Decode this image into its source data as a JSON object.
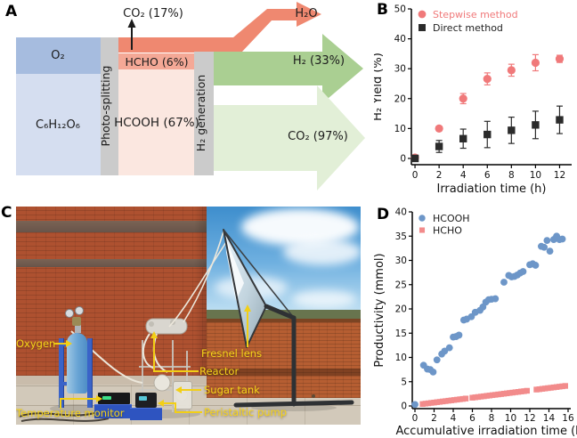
{
  "panels": {
    "a": {
      "letter": "A",
      "diagram": {
        "o2": "O₂",
        "glucose": "C₆H₁₂O₆",
        "stage1": "Photo-splitting",
        "co2_vent": "CO₂ (17%)",
        "hcho": "HCHO (6%)",
        "hcooh": "HCOOH (67%)",
        "stage2": "H₂ generation",
        "h2o": "H₂O",
        "h2_out": "H₂ (33%)",
        "co2_out": "CO₂ (97%)",
        "colors": {
          "o2": "#a6bcdf",
          "glucose": "#d5def0",
          "stage_bar": "#cbcbcb",
          "flow_salmon": "#ef8870",
          "hcho": "#f4a896",
          "hcooh": "#fbe7e0",
          "h2_arrow": "#aacf92",
          "co2_arrow": "#e2efd7"
        }
      }
    },
    "b": {
      "letter": "B"
    },
    "c": {
      "letter": "C",
      "label_color": "#f6d41a",
      "annotations": [
        {
          "label": "Oxygen"
        },
        {
          "label": "Temperature monitor"
        },
        {
          "label": "Reactor"
        },
        {
          "label": "Sugar tank"
        },
        {
          "label": "Peristaltic pump"
        },
        {
          "label": "Fresnel lens"
        }
      ]
    },
    "d": {
      "letter": "D"
    }
  },
  "chart_data": [
    {
      "panel": "B",
      "type": "scatter",
      "title": "",
      "xlabel": "Irradiation time (h)",
      "ylabel": "H₂ Yield (%)",
      "xlim": [
        0,
        12
      ],
      "ylim": [
        0,
        50
      ],
      "xticks": [
        0,
        2,
        4,
        6,
        8,
        10,
        12
      ],
      "yticks": [
        0,
        10,
        20,
        30,
        40,
        50
      ],
      "grid": false,
      "legend_position": "top-left",
      "series": [
        {
          "name": "Stepwise method",
          "marker": "circle",
          "color": "#f0797a",
          "label_color": "#f0797a",
          "x": [
            0,
            2,
            4,
            6,
            8,
            10,
            12
          ],
          "y": [
            0.3,
            10,
            20,
            26.6,
            29.5,
            32,
            33.3
          ],
          "yerr": [
            0.4,
            0.5,
            1.7,
            2.0,
            2.0,
            2.7,
            1.2
          ]
        },
        {
          "name": "Direct method",
          "marker": "square",
          "color": "#2b2b2b",
          "label_color": "#222222",
          "x": [
            0,
            2,
            4,
            6,
            8,
            10,
            12
          ],
          "y": [
            0,
            4,
            6.6,
            8,
            9.4,
            11.2,
            12.9
          ],
          "yerr": [
            0.9,
            2.0,
            3.2,
            4.4,
            4.4,
            4.6,
            4.6
          ]
        }
      ]
    },
    {
      "panel": "D",
      "type": "scatter",
      "title": "",
      "xlabel": "Accumulative irradiation time (h)",
      "ylabel": "Productivity (mmol)",
      "xlim": [
        0,
        16
      ],
      "ylim": [
        0,
        40
      ],
      "xticks": [
        0,
        2,
        4,
        6,
        8,
        10,
        12,
        14,
        16
      ],
      "yticks": [
        0,
        5,
        10,
        15,
        20,
        25,
        30,
        35,
        40
      ],
      "grid": false,
      "legend_position": "top-left",
      "series": [
        {
          "name": "HCOOH",
          "marker": "circle",
          "color": "#6d96c8",
          "label_color": "#1a1a1a",
          "x": [
            0,
            0.9,
            1.3,
            1.6,
            1.9,
            2.3,
            2.8,
            3.1,
            3.6,
            4.0,
            4.3,
            4.6,
            5.1,
            5.4,
            5.9,
            6.3,
            6.8,
            7.1,
            7.4,
            7.7,
            8.0,
            8.4,
            9.3,
            9.8,
            10.1,
            10.4,
            10.7,
            11.0,
            11.3,
            12.0,
            12.3,
            12.6,
            13.2,
            13.5,
            13.8,
            14.1,
            14.5,
            14.8,
            15.1,
            15.4
          ],
          "y": [
            0.3,
            8.4,
            7.6,
            7.5,
            7.0,
            9.5,
            10.7,
            11.3,
            12.0,
            14.2,
            14.3,
            14.6,
            17.7,
            17.9,
            18.4,
            19.3,
            19.7,
            20.4,
            21.4,
            21.9,
            22.0,
            22.1,
            25.5,
            26.9,
            26.6,
            26.7,
            27.0,
            27.4,
            27.7,
            29.1,
            29.3,
            29.0,
            32.9,
            32.7,
            34.1,
            31.9,
            34.3,
            35.0,
            34.3,
            34.4
          ]
        },
        {
          "name": "HCHO",
          "marker": "square",
          "color": "#f28b8b",
          "label_color": "#1a1a1a",
          "x": [
            0.8,
            1.1,
            1.4,
            1.7,
            2.0,
            2.3,
            2.6,
            2.9,
            3.2,
            3.5,
            3.8,
            4.1,
            4.4,
            4.7,
            5.0,
            5.3,
            6.0,
            6.3,
            6.6,
            6.9,
            7.2,
            7.5,
            7.8,
            8.1,
            8.4,
            8.7,
            9.0,
            9.3,
            9.6,
            9.9,
            10.2,
            10.5,
            10.8,
            11.1,
            11.4,
            11.7,
            12.7,
            13.0,
            13.3,
            13.6,
            13.9,
            14.2,
            14.5,
            14.8,
            15.1,
            15.4,
            15.7
          ],
          "y": [
            0.4,
            0.48,
            0.55,
            0.63,
            0.7,
            0.78,
            0.85,
            0.93,
            1.0,
            1.08,
            1.15,
            1.23,
            1.3,
            1.38,
            1.45,
            1.53,
            1.7,
            1.78,
            1.85,
            1.93,
            2.0,
            2.08,
            2.15,
            2.23,
            2.3,
            2.38,
            2.45,
            2.53,
            2.6,
            2.68,
            2.75,
            2.83,
            2.9,
            2.98,
            3.05,
            3.13,
            3.38,
            3.45,
            3.53,
            3.6,
            3.68,
            3.75,
            3.83,
            3.9,
            3.98,
            4.05,
            4.13
          ]
        }
      ]
    }
  ]
}
